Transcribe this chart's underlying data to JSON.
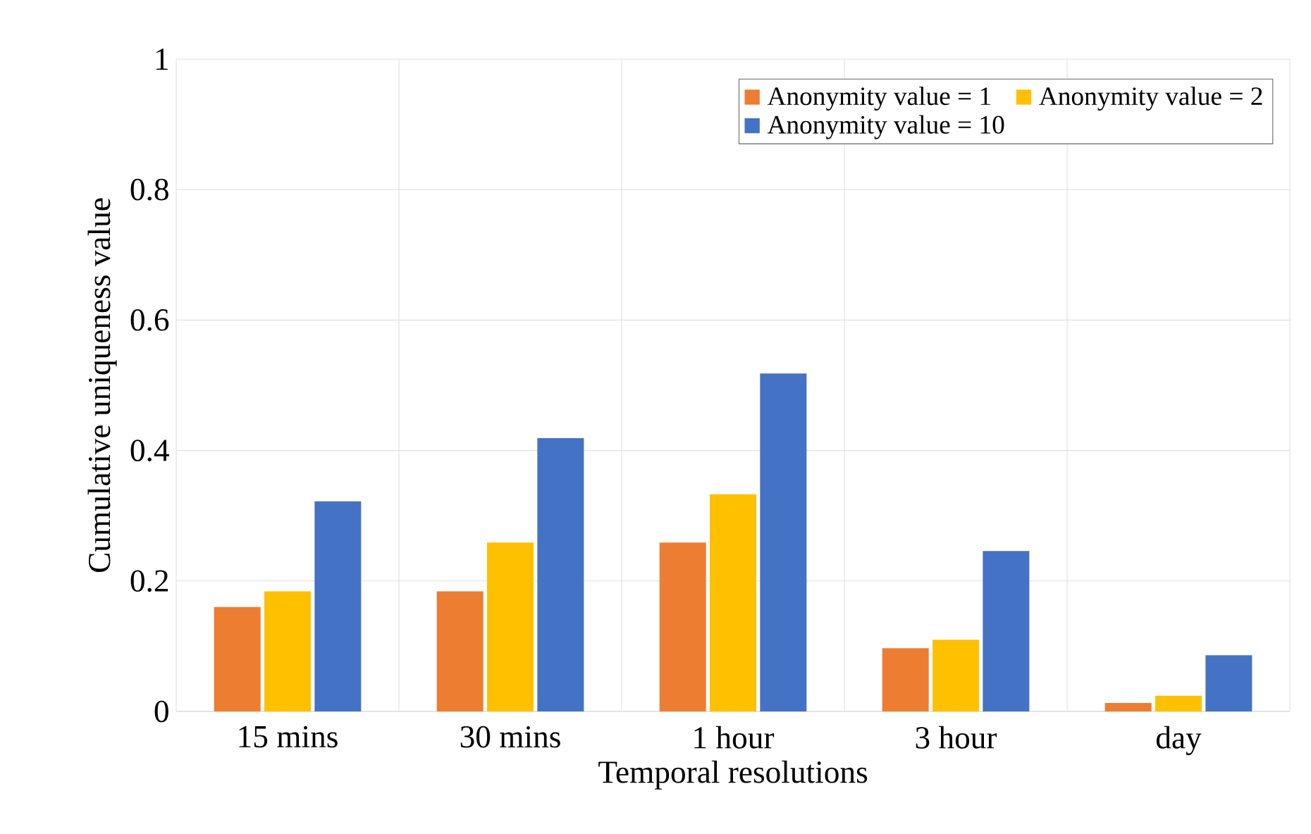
{
  "chart_data": {
    "type": "bar",
    "xlabel": "Temporal resolutions",
    "ylabel": "Cumulative uniqueness value",
    "categories": [
      "15 mins",
      "30 mins",
      "1 hour",
      "3 hour",
      "day"
    ],
    "series": [
      {
        "name": "Anonymity value = 1",
        "color": "#ed7d31",
        "values": [
          0.16,
          0.184,
          0.259,
          0.097,
          0.013
        ]
      },
      {
        "name": "Anonymity value = 2",
        "color": "#ffc000",
        "values": [
          0.184,
          0.259,
          0.333,
          0.11,
          0.024
        ]
      },
      {
        "name": "Anonymity value = 10",
        "color": "#4472c4",
        "values": [
          0.322,
          0.419,
          0.518,
          0.246,
          0.086
        ]
      }
    ],
    "ylim": [
      0,
      1
    ],
    "yticks": [
      0,
      0.2,
      0.4,
      0.6,
      0.8,
      1
    ],
    "grid": true,
    "legend": "top right"
  }
}
